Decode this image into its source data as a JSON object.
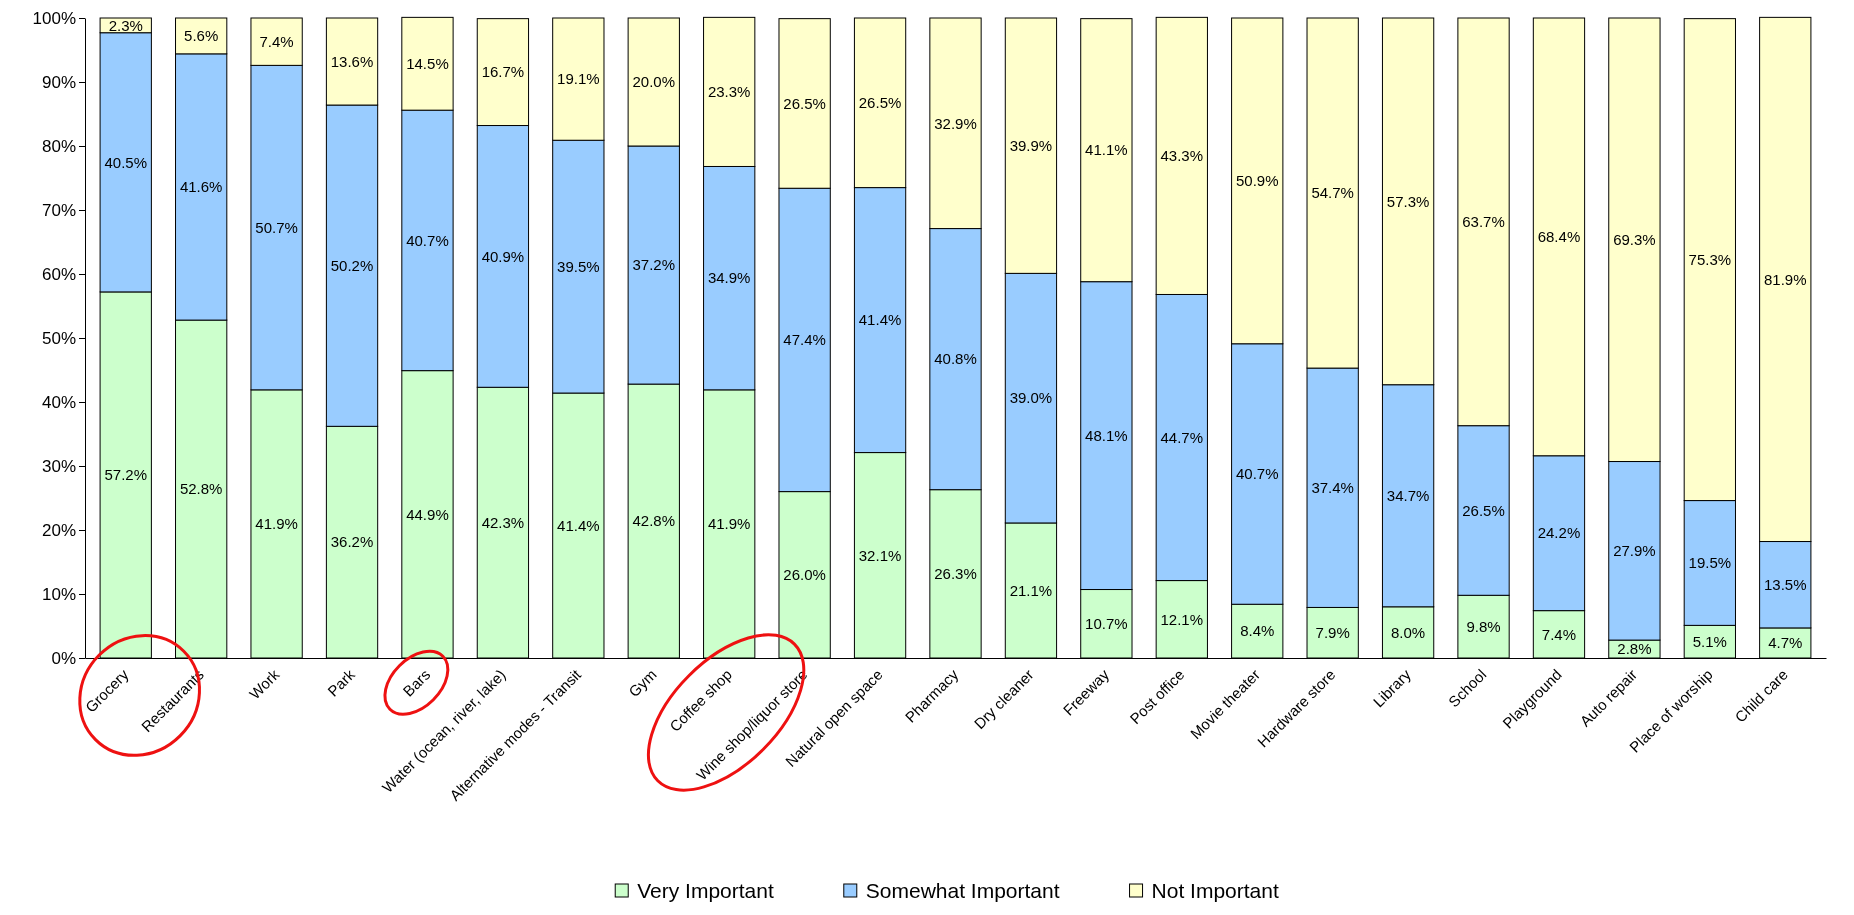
{
  "chart_data": {
    "type": "bar",
    "stacked": true,
    "legend": "bottom",
    "grid": false,
    "categories": [
      "Grocery",
      "Restaurants",
      "Work",
      "Park",
      "Bars",
      "Water (ocean, river, lake)",
      "Alternative modes - Transit",
      "Gym",
      "Coffee shop",
      "Wine shop/liquor store",
      "Natural open space",
      "Pharmacy",
      "Dry cleaner",
      "Freeway",
      "Post office",
      "Movie theater",
      "Hardware store",
      "Library",
      "School",
      "Playground",
      "Auto repair",
      "Place of worship",
      "Child care"
    ],
    "ylim": [
      0,
      100
    ],
    "yticks": [
      {
        "value": 0,
        "label": "0%"
      },
      {
        "value": 10,
        "label": "10%"
      },
      {
        "value": 20,
        "label": "20%"
      },
      {
        "value": 30,
        "label": "30%"
      },
      {
        "value": 40,
        "label": "40%"
      },
      {
        "value": 50,
        "label": "50%"
      },
      {
        "value": 60,
        "label": "60%"
      },
      {
        "value": 70,
        "label": "70%"
      },
      {
        "value": 80,
        "label": "80%"
      },
      {
        "value": 90,
        "label": "90%"
      },
      {
        "value": 100,
        "label": "100%"
      }
    ],
    "series": [
      {
        "name": "Very Important",
        "color": "#ccffcc",
        "values": [
          57.2,
          52.8,
          41.9,
          36.2,
          44.9,
          42.3,
          41.4,
          42.8,
          41.9,
          26.0,
          32.1,
          26.3,
          21.1,
          10.7,
          12.1,
          8.4,
          7.9,
          8.0,
          9.8,
          7.4,
          2.8,
          5.1,
          4.7
        ],
        "value_labels": [
          "57.2%",
          "52.8%",
          "41.9%",
          "36.2%",
          "44.9%",
          "42.3%",
          "41.4%",
          "42.8%",
          "41.9%",
          "26.0%",
          "32.1%",
          "26.3%",
          "21.1%",
          "10.7%",
          "12.1%",
          "8.4%",
          "7.9%",
          "8.0%",
          "9.8%",
          "7.4%",
          "2.8%",
          "5.1%",
          "4.7%"
        ]
      },
      {
        "name": "Somewhat Important",
        "color": "#99ccff",
        "values": [
          40.5,
          41.6,
          50.7,
          50.2,
          40.7,
          40.9,
          39.5,
          37.2,
          34.9,
          47.4,
          41.4,
          40.8,
          39.0,
          48.1,
          44.7,
          40.7,
          37.4,
          34.7,
          26.5,
          24.2,
          27.9,
          19.5,
          13.5
        ],
        "value_labels": [
          "40.5%",
          "41.6%",
          "50.7%",
          "50.2%",
          "40.7%",
          "40.9%",
          "39.5%",
          "37.2%",
          "34.9%",
          "47.4%",
          "41.4%",
          "40.8%",
          "39.0%",
          "48.1%",
          "44.7%",
          "40.7%",
          "37.4%",
          "34.7%",
          "26.5%",
          "24.2%",
          "27.9%",
          "19.5%",
          "13.5%"
        ]
      },
      {
        "name": "Not Important",
        "color": "#ffffcc",
        "values": [
          2.3,
          5.6,
          7.4,
          13.6,
          14.5,
          16.7,
          19.1,
          20.0,
          23.3,
          26.5,
          26.5,
          32.9,
          39.9,
          41.1,
          43.3,
          50.9,
          54.7,
          57.3,
          63.7,
          68.4,
          69.3,
          75.3,
          81.9
        ],
        "value_labels": [
          "2.3%",
          "5.6%",
          "7.4%",
          "13.6%",
          "14.5%",
          "16.7%",
          "19.1%",
          "20.0%",
          "23.3%",
          "26.5%",
          "26.5%",
          "32.9%",
          "39.9%",
          "41.1%",
          "43.3%",
          "50.9%",
          "54.7%",
          "57.3%",
          "63.7%",
          "68.4%",
          "69.3%",
          "75.3%",
          "81.9%"
        ]
      }
    ]
  }
}
